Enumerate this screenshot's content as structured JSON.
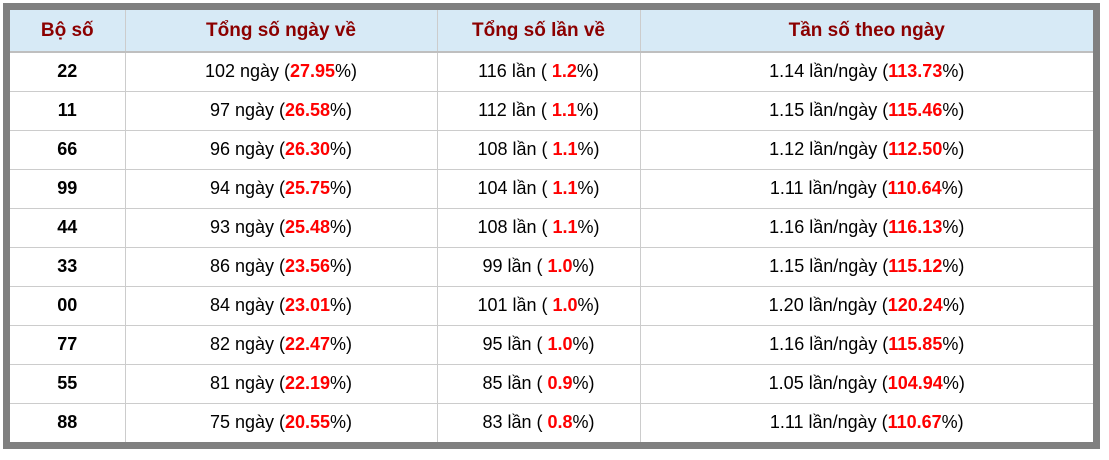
{
  "table": {
    "headers": [
      "Bộ số",
      "Tổng số ngày về",
      "Tổng số lần về",
      "Tần số theo ngày"
    ],
    "rows": [
      {
        "pair": "22",
        "days_pre": "102 ngày (",
        "days_hl": "27.95",
        "days_post": "%)",
        "times_pre": "116 lần ( ",
        "times_hl": "1.2",
        "times_post": "%)",
        "freq_pre": "1.14 lần/ngày (",
        "freq_hl": "113.73",
        "freq_post": "%)"
      },
      {
        "pair": "11",
        "days_pre": "97 ngày (",
        "days_hl": "26.58",
        "days_post": "%)",
        "times_pre": "112 lần ( ",
        "times_hl": "1.1",
        "times_post": "%)",
        "freq_pre": "1.15 lần/ngày (",
        "freq_hl": "115.46",
        "freq_post": "%)"
      },
      {
        "pair": "66",
        "days_pre": "96 ngày (",
        "days_hl": "26.30",
        "days_post": "%)",
        "times_pre": "108 lần ( ",
        "times_hl": "1.1",
        "times_post": "%)",
        "freq_pre": "1.12 lần/ngày (",
        "freq_hl": "112.50",
        "freq_post": "%)"
      },
      {
        "pair": "99",
        "days_pre": "94 ngày (",
        "days_hl": "25.75",
        "days_post": "%)",
        "times_pre": "104 lần ( ",
        "times_hl": "1.1",
        "times_post": "%)",
        "freq_pre": "1.11 lần/ngày (",
        "freq_hl": "110.64",
        "freq_post": "%)"
      },
      {
        "pair": "44",
        "days_pre": "93 ngày (",
        "days_hl": "25.48",
        "days_post": "%)",
        "times_pre": "108 lần ( ",
        "times_hl": "1.1",
        "times_post": "%)",
        "freq_pre": "1.16 lần/ngày (",
        "freq_hl": "116.13",
        "freq_post": "%)"
      },
      {
        "pair": "33",
        "days_pre": "86 ngày (",
        "days_hl": "23.56",
        "days_post": "%)",
        "times_pre": "99 lần ( ",
        "times_hl": "1.0",
        "times_post": "%)",
        "freq_pre": "1.15 lần/ngày (",
        "freq_hl": "115.12",
        "freq_post": "%)"
      },
      {
        "pair": "00",
        "days_pre": "84 ngày (",
        "days_hl": "23.01",
        "days_post": "%)",
        "times_pre": "101 lần ( ",
        "times_hl": "1.0",
        "times_post": "%)",
        "freq_pre": "1.20 lần/ngày (",
        "freq_hl": "120.24",
        "freq_post": "%)"
      },
      {
        "pair": "77",
        "days_pre": "82 ngày (",
        "days_hl": "22.47",
        "days_post": "%)",
        "times_pre": "95 lần ( ",
        "times_hl": "1.0",
        "times_post": "%)",
        "freq_pre": "1.16 lần/ngày (",
        "freq_hl": "115.85",
        "freq_post": "%)"
      },
      {
        "pair": "55",
        "days_pre": "81 ngày (",
        "days_hl": "22.19",
        "days_post": "%)",
        "times_pre": "85 lần ( ",
        "times_hl": "0.9",
        "times_post": "%)",
        "freq_pre": "1.05 lần/ngày (",
        "freq_hl": "104.94",
        "freq_post": "%)"
      },
      {
        "pair": "88",
        "days_pre": "75 ngày (",
        "days_hl": "20.55",
        "days_post": "%)",
        "times_pre": "83 lần ( ",
        "times_hl": "0.8",
        "times_post": "%)",
        "freq_pre": "1.11 lần/ngày (",
        "freq_hl": "110.67",
        "freq_post": "%)"
      }
    ]
  },
  "colors": {
    "frame": "#808080",
    "header_bg": "#d7eaf6",
    "header_text": "#8b0000",
    "highlight": "#ff0000",
    "grid": "#cccccc"
  }
}
